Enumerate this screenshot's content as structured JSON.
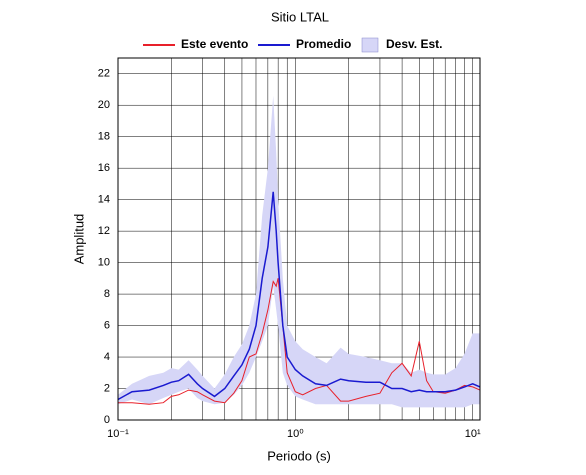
{
  "chart_data": {
    "type": "line",
    "title": "Sitio LTAL",
    "xlabel": "Periodo (s)",
    "ylabel": "Amplitud",
    "x": [
      0.1,
      0.12,
      0.15,
      0.18,
      0.2,
      0.22,
      0.25,
      0.28,
      0.3,
      0.35,
      0.4,
      0.45,
      0.5,
      0.55,
      0.6,
      0.65,
      0.7,
      0.75,
      0.78,
      0.8,
      0.85,
      0.9,
      1.0,
      1.1,
      1.3,
      1.5,
      1.8,
      2,
      2.5,
      3,
      3.5,
      4,
      4.5,
      5,
      5.5,
      6,
      7,
      8,
      9,
      10,
      11
    ],
    "band": {
      "name": "Desv. Est.",
      "color": "#d6d6f7",
      "lower": [
        1.0,
        1.3,
        1.0,
        1.4,
        1.6,
        1.8,
        2.0,
        1.4,
        1.2,
        1.0,
        1.1,
        1.6,
        2.2,
        3,
        4,
        5,
        6,
        8.5,
        7,
        6,
        3,
        2.2,
        1.5,
        1.3,
        1.0,
        1.0,
        1.0,
        1.0,
        1.0,
        1.0,
        1.0,
        0.8,
        0.8,
        0.8,
        0.8,
        0.8,
        0.8,
        0.8,
        0.8,
        1.0,
        1.0
      ],
      "upper": [
        1.6,
        2.3,
        2.8,
        3.0,
        3.3,
        3.2,
        3.8,
        3.2,
        2.8,
        2.0,
        2.9,
        4,
        4.8,
        6,
        8,
        13,
        16,
        20.6,
        17,
        14,
        9,
        6,
        5,
        4.5,
        4,
        3.6,
        4.6,
        4.2,
        4.0,
        3.8,
        3.6,
        3.6,
        3.0,
        3.2,
        3,
        2.9,
        2.9,
        3.3,
        4.2,
        5.5,
        5.5
      ]
    },
    "series": [
      {
        "name": "Este evento",
        "color": "#e8202a",
        "values": [
          1.1,
          1.1,
          1.0,
          1.1,
          1.5,
          1.6,
          1.9,
          1.8,
          1.6,
          1.2,
          1.1,
          1.7,
          2.5,
          4.0,
          4.2,
          5.5,
          7,
          8.8,
          8.5,
          9,
          6,
          3,
          1.8,
          1.6,
          2.0,
          2.2,
          1.2,
          1.2,
          1.5,
          1.7,
          3.0,
          3.6,
          2.8,
          5.0,
          2.5,
          1.8,
          1.7,
          1.9,
          2.2,
          2.1,
          1.9
        ]
      },
      {
        "name": "Promedio",
        "color": "#1a1ad0",
        "values": [
          1.3,
          1.8,
          1.9,
          2.2,
          2.4,
          2.5,
          2.9,
          2.3,
          2.0,
          1.5,
          2.0,
          2.8,
          3.5,
          4.5,
          6,
          9,
          11,
          14.5,
          12,
          10,
          6,
          4,
          3.2,
          2.8,
          2.3,
          2.2,
          2.6,
          2.5,
          2.4,
          2.4,
          2.0,
          2.0,
          1.8,
          1.9,
          1.8,
          1.8,
          1.8,
          1.9,
          2.1,
          2.3,
          2.1
        ]
      }
    ],
    "xlog": true,
    "xlim": [
      0.1,
      11
    ],
    "xticks": [
      {
        "value": 0.1,
        "label": "10⁻¹"
      },
      {
        "value": 1,
        "label": "10⁰"
      },
      {
        "value": 10,
        "label": "10¹"
      }
    ],
    "xminor_ticks": [
      0.2,
      0.3,
      0.4,
      0.5,
      0.6,
      0.7,
      0.8,
      0.9,
      2,
      3,
      4,
      5,
      6,
      7,
      8,
      9
    ],
    "ylim": [
      0,
      23
    ],
    "yticks": [
      0,
      2,
      4,
      6,
      8,
      10,
      12,
      14,
      16,
      18,
      20,
      22
    ],
    "grid": true
  }
}
